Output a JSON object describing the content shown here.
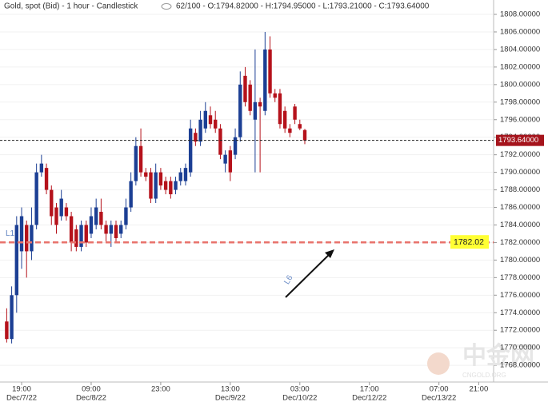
{
  "chart_data": {
    "type": "candlestick",
    "title": "Gold, spot (Bid) - 1 hour - Candlestick",
    "info": "62/100 - O:1794.82000 - H:1794.95000 - L:1793.21000 - C:1793.64000",
    "up_color": "#1c3f94",
    "down_color": "#b5121b",
    "x": [
      0,
      1,
      2,
      3,
      4,
      5,
      6,
      7,
      8,
      9,
      10,
      11,
      12,
      13,
      14,
      15,
      16,
      17,
      18,
      19,
      20,
      21,
      22,
      23,
      24,
      25,
      26,
      27,
      28,
      29,
      30,
      31,
      32,
      33,
      34,
      35,
      36,
      37,
      38,
      39,
      40,
      41,
      42,
      43,
      44,
      45,
      46,
      47,
      48,
      49,
      50,
      51,
      52,
      53,
      54,
      55,
      56,
      57,
      58,
      59,
      60
    ],
    "open": [
      1773,
      1771,
      1776,
      1781,
      1784,
      1781,
      1784,
      1790,
      1790.5,
      1788,
      1786,
      1785,
      1786,
      1785,
      1783.5,
      1781.5,
      1784,
      1783,
      1784,
      1785.5,
      1784,
      1783,
      1784,
      1783,
      1784,
      1786,
      1789,
      1793,
      1790,
      1790,
      1787,
      1790,
      1789,
      1789,
      1788,
      1789,
      1789,
      1790,
      1794.5,
      1793.5,
      1795,
      1796.5,
      1796,
      1795,
      1791,
      1792.5,
      1792,
      1794,
      1801,
      1800,
      1796,
      1798,
      1797,
      1804,
      1799,
      1799,
      1797,
      1795,
      1797.5,
      1795.5,
      1794.82
    ],
    "high": [
      1774.5,
      1777,
      1785,
      1786,
      1784.5,
      1786,
      1791,
      1792,
      1791,
      1788.5,
      1786.5,
      1788,
      1786.5,
      1785.5,
      1784,
      1784.5,
      1784.5,
      1786,
      1787,
      1787,
      1784.5,
      1784.5,
      1784.5,
      1784.5,
      1787,
      1790,
      1794,
      1795,
      1790.5,
      1790.5,
      1791,
      1790.5,
      1789.5,
      1789.5,
      1789.5,
      1790.5,
      1791,
      1796,
      1795,
      1797,
      1798,
      1797.5,
      1797,
      1795.5,
      1792.5,
      1793,
      1795,
      1801.5,
      1802,
      1800.5,
      1804,
      1798.5,
      1806,
      1805.5,
      1799.5,
      1799.5,
      1797.5,
      1795.5,
      1797.8,
      1796,
      1794.95
    ],
    "low": [
      1770.6,
      1770.5,
      1774,
      1779,
      1778,
      1780,
      1783.5,
      1789.5,
      1787.5,
      1784,
      1783,
      1784.5,
      1784.5,
      1781,
      1781,
      1781,
      1781.5,
      1782.5,
      1783.5,
      1783.5,
      1782,
      1781.5,
      1782,
      1782.5,
      1783.5,
      1785.5,
      1788.5,
      1789.5,
      1789,
      1786.5,
      1786.5,
      1788,
      1787.5,
      1787,
      1787.5,
      1788.5,
      1788.5,
      1789.5,
      1793,
      1793,
      1794.5,
      1795,
      1794.5,
      1791.5,
      1790,
      1789,
      1791.5,
      1793.5,
      1797.5,
      1796.5,
      1790,
      1790,
      1796.5,
      1798.5,
      1798,
      1795,
      1794.5,
      1794,
      1795.5,
      1794.8,
      1793.21
    ],
    "close": [
      1771,
      1776,
      1784,
      1785,
      1781,
      1784,
      1790,
      1791,
      1788,
      1785,
      1784,
      1787,
      1785,
      1782,
      1781.5,
      1784,
      1782,
      1785,
      1786,
      1784,
      1783,
      1784,
      1782.5,
      1784,
      1786,
      1789,
      1793,
      1790,
      1789.5,
      1787,
      1790,
      1788.5,
      1788,
      1787.5,
      1789,
      1790,
      1790.5,
      1795,
      1793.5,
      1796,
      1797,
      1795.5,
      1795,
      1792,
      1792,
      1790,
      1794,
      1800,
      1798,
      1797,
      1798,
      1797.5,
      1804,
      1799,
      1798.5,
      1795.5,
      1795,
      1794.5,
      1796,
      1795,
      1793.64
    ],
    "xlim": [
      -1.35,
      98
    ],
    "xticks": [
      {
        "value": 3,
        "label": "19:00",
        "date": "Dec/7/22"
      },
      {
        "value": 17,
        "label": "09:00",
        "date": "Dec/8/22"
      },
      {
        "value": 31,
        "label": "23:00"
      },
      {
        "value": 45,
        "label": "13:00",
        "date": "Dec/9/22"
      },
      {
        "value": 59,
        "label": "03:00",
        "date": "Dec/10/22"
      },
      {
        "value": 73,
        "label": "17:00",
        "date": "Dec/12/22"
      },
      {
        "value": 87,
        "label": "07:00",
        "date": "Dec/13/22"
      },
      {
        "value": 95,
        "label": "21:00"
      }
    ],
    "ylim": [
      1766.1,
      1809.64
    ],
    "yticks": [
      {
        "value": 1768,
        "label": "1768.00000"
      },
      {
        "value": 1770,
        "label": "1770.00000"
      },
      {
        "value": 1772,
        "label": "1772.00000"
      },
      {
        "value": 1774,
        "label": "1774.00000"
      },
      {
        "value": 1776,
        "label": "1776.00000"
      },
      {
        "value": 1778,
        "label": "1778.00000"
      },
      {
        "value": 1780,
        "label": "1780.00000"
      },
      {
        "value": 1782,
        "label": "1782.00000"
      },
      {
        "value": 1784,
        "label": "1784.00000"
      },
      {
        "value": 1786,
        "label": "1786.00000"
      },
      {
        "value": 1788,
        "label": "1788.00000"
      },
      {
        "value": 1790,
        "label": "1790.00000"
      },
      {
        "value": 1792,
        "label": "1792.00000"
      },
      {
        "value": 1794,
        "label": "1794.00000"
      },
      {
        "value": 1796,
        "label": "1796.00000"
      },
      {
        "value": 1798,
        "label": "1798.00000"
      },
      {
        "value": 1800,
        "label": "1800.00000"
      },
      {
        "value": 1802,
        "label": "1802.00000"
      },
      {
        "value": 1804,
        "label": "1804.00000"
      },
      {
        "value": 1806,
        "label": "1806.00000"
      },
      {
        "value": 1808,
        "label": "1808.00000"
      }
    ],
    "current_price": {
      "value": 1793.64,
      "label": "1793.64000"
    },
    "level": {
      "name": "L1",
      "value": 1782.02,
      "label": "1782.02"
    },
    "trend_label": "L6",
    "watermark": "中金网",
    "watermark_sub": "CNGOLD.ORG"
  }
}
